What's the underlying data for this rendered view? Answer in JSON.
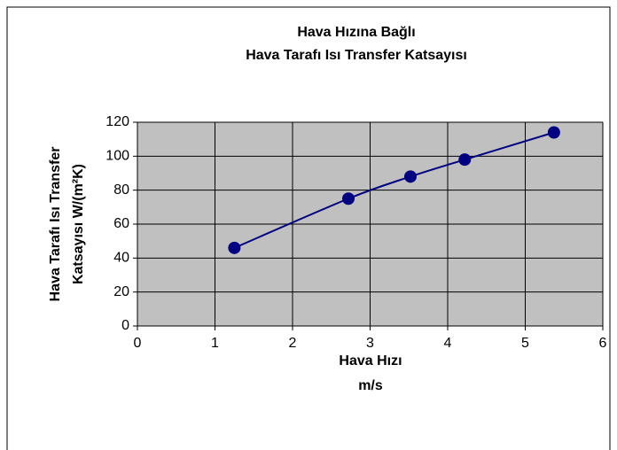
{
  "chart_data": {
    "type": "scatter",
    "title": [
      "Hava Hızına Bağlı",
      "Hava Tarafı Isı Transfer Katsayısı"
    ],
    "x_label": [
      "Hava Hızı",
      "m/s"
    ],
    "y_label": [
      "Hava Tarafı Isı Transfer",
      "Katsayısı W/(m²K)"
    ],
    "series": [
      {
        "name": "Hava Tarafı Isı Transfer Katsayısı",
        "color": "#000080",
        "x": [
          1.25,
          2.72,
          3.52,
          4.22,
          5.37
        ],
        "values": [
          46,
          75,
          88,
          98,
          114
        ]
      }
    ],
    "xlim": [
      0,
      6
    ],
    "xticks": [
      0,
      1,
      2,
      3,
      4,
      5,
      6
    ],
    "ylim": [
      0,
      120
    ],
    "yticks": [
      0,
      20,
      40,
      60,
      80,
      100,
      120
    ],
    "grid": true,
    "smooth": true,
    "plot_background": "#c0c0c0"
  }
}
